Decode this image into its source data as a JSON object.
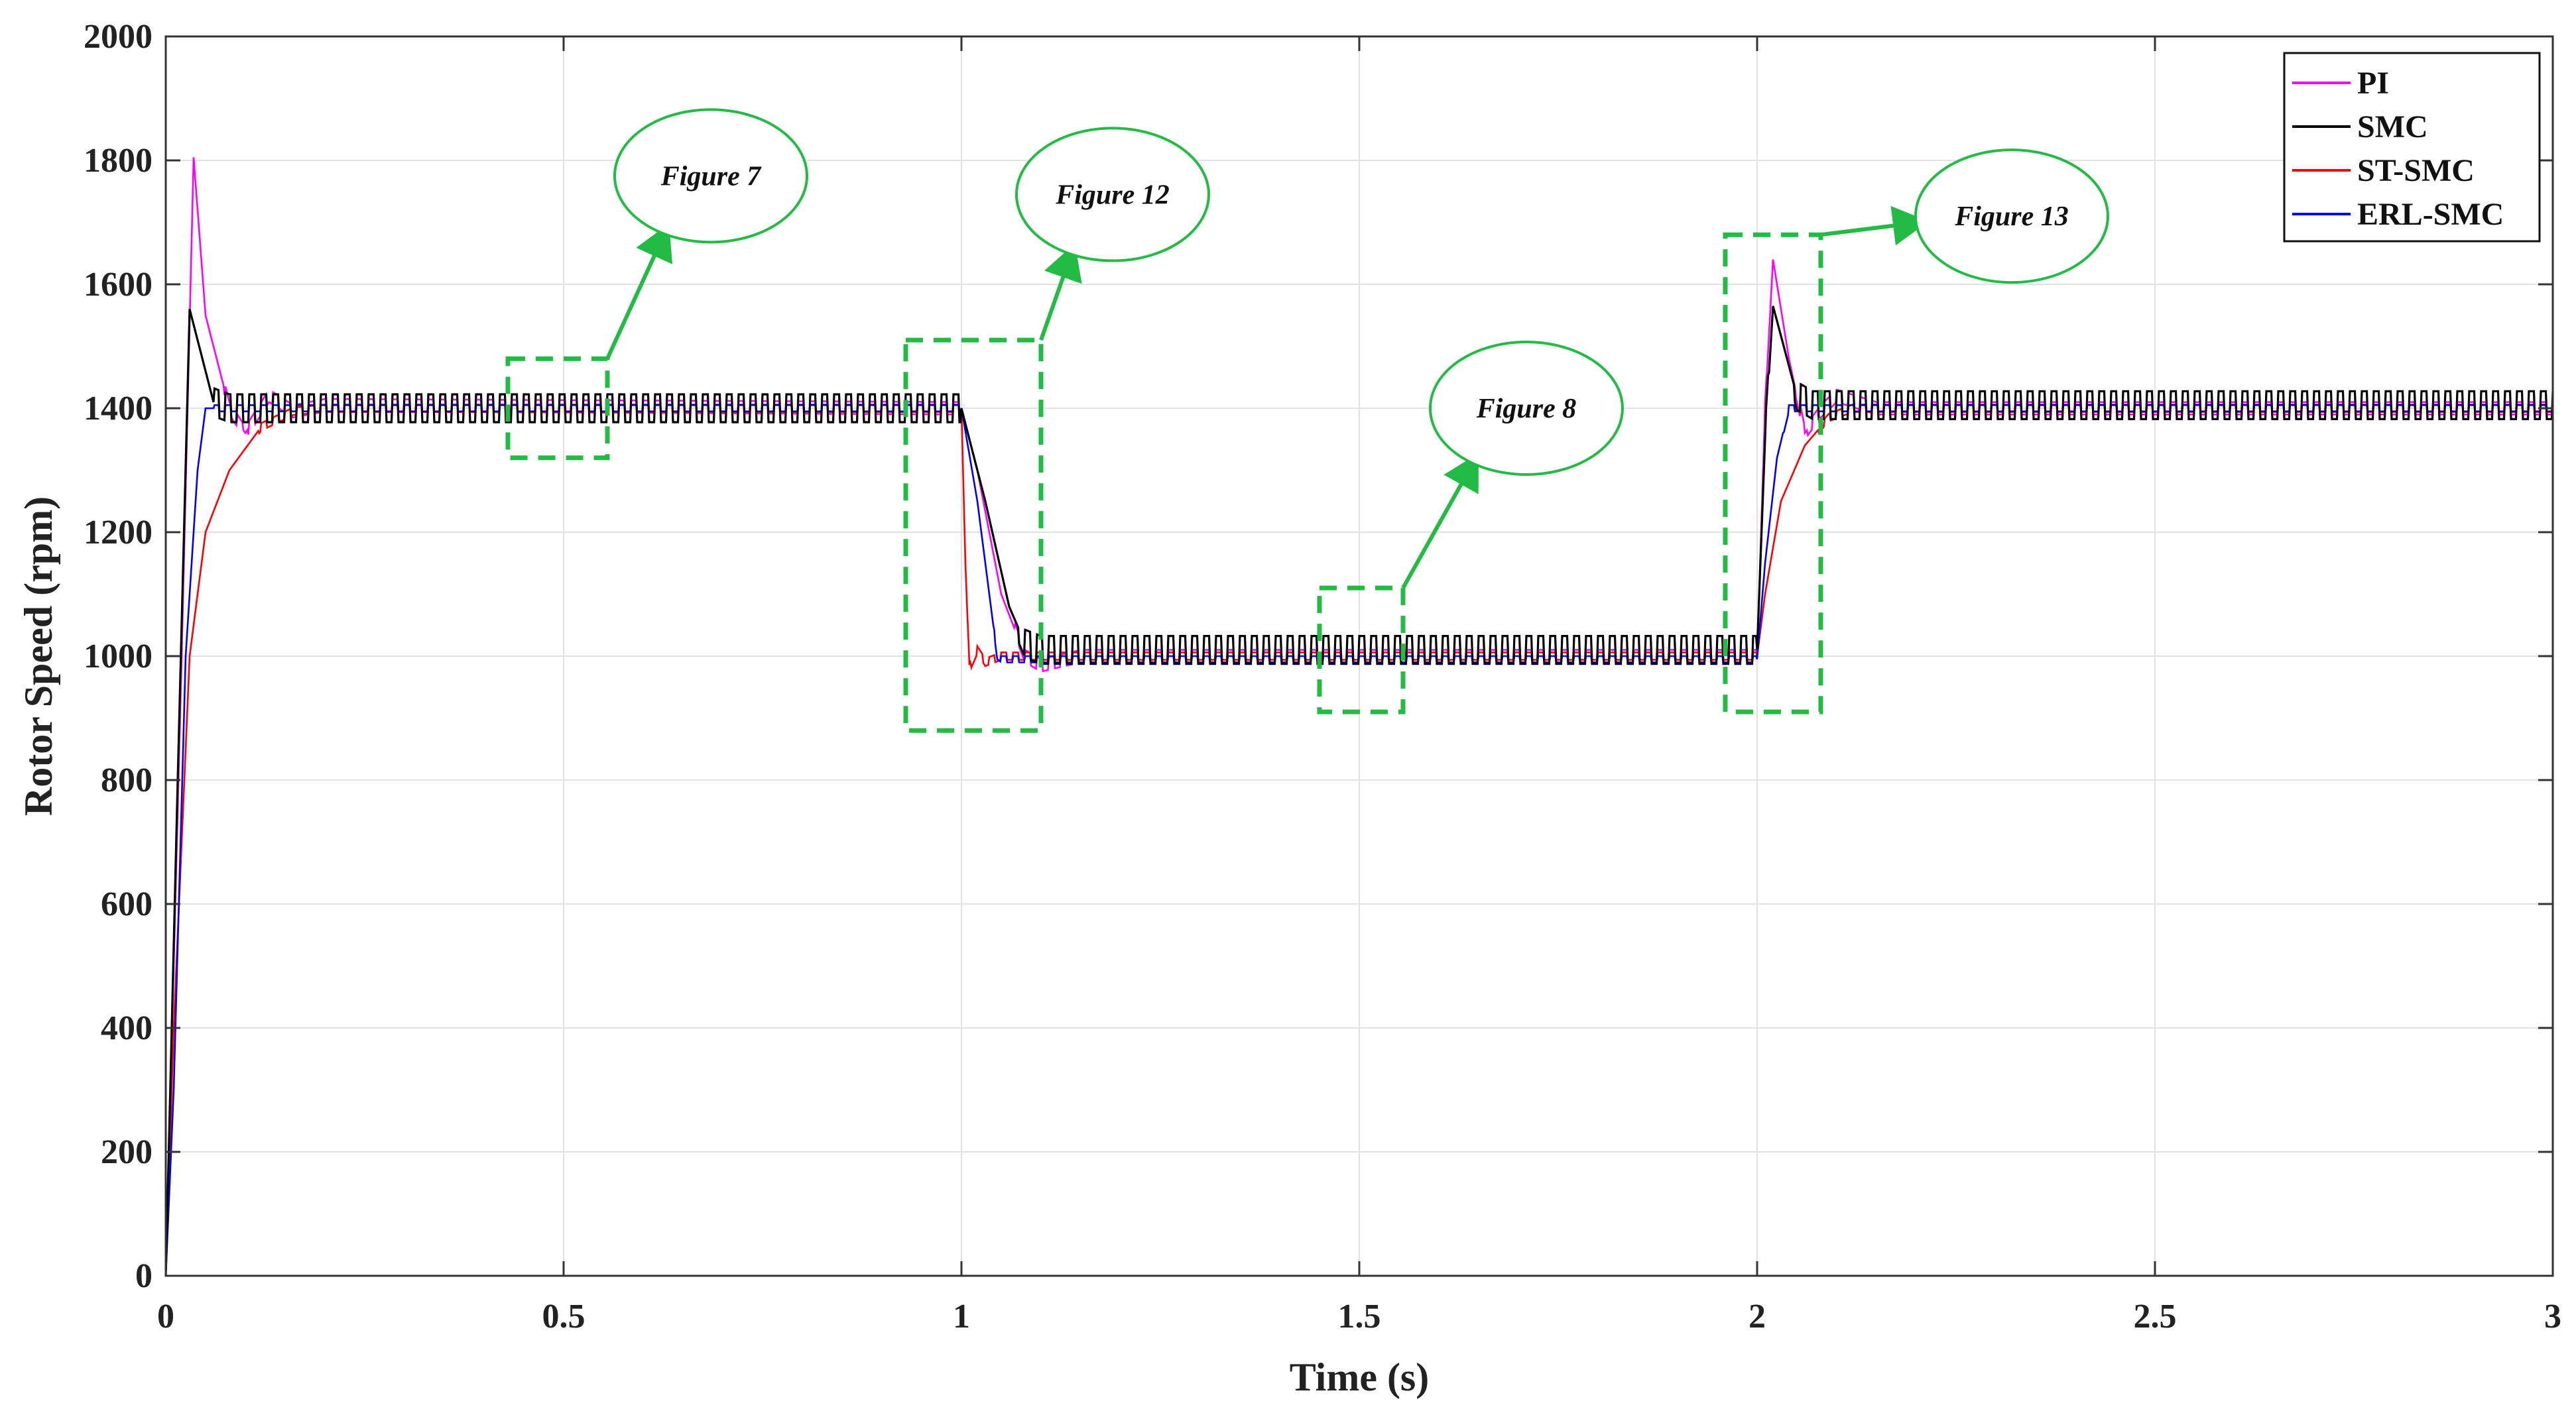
{
  "chart_data": {
    "type": "line",
    "title": "",
    "xlabel": "Time (s)",
    "ylabel": "Rotor Speed (rpm)",
    "xlim": [
      0,
      3
    ],
    "ylim": [
      0,
      2000
    ],
    "xticks": [
      0,
      0.5,
      1,
      1.5,
      2,
      2.5,
      3
    ],
    "xtick_labels": [
      "0",
      "0.5",
      "1",
      "1.5",
      "2",
      "2.5",
      "3"
    ],
    "yticks": [
      0,
      200,
      400,
      600,
      800,
      1000,
      1200,
      1400,
      1600,
      1800,
      2000
    ],
    "ytick_labels": [
      "0",
      "200",
      "400",
      "600",
      "800",
      "1000",
      "1200",
      "1400",
      "1600",
      "1800",
      "2000"
    ],
    "grid": true,
    "legend_position": "top-right",
    "reference_steps": [
      {
        "t": 0,
        "speed": 1400
      },
      {
        "t": 1,
        "speed": 1000
      },
      {
        "t": 2,
        "speed": 1400
      }
    ],
    "series": [
      {
        "name": "PI",
        "color": "#ff00ff",
        "ripple": 20,
        "points": [
          [
            0,
            0
          ],
          [
            0.02,
            1000
          ],
          [
            0.035,
            1805
          ],
          [
            0.05,
            1550
          ],
          [
            0.08,
            1400
          ],
          [
            0.1,
            1360
          ],
          [
            0.13,
            1420
          ],
          [
            0.16,
            1395
          ],
          [
            0.2,
            1405
          ],
          [
            1,
            1400
          ],
          [
            1.02,
            1300
          ],
          [
            1.05,
            1100
          ],
          [
            1.08,
            1000
          ],
          [
            1.1,
            985
          ],
          [
            1.15,
            1000
          ],
          [
            2,
            1000
          ],
          [
            2.01,
            1400
          ],
          [
            2.02,
            1640
          ],
          [
            2.04,
            1480
          ],
          [
            2.06,
            1360
          ],
          [
            2.08,
            1395
          ],
          [
            2.1,
            1420
          ],
          [
            2.15,
            1400
          ],
          [
            3,
            1400
          ]
        ]
      },
      {
        "name": "SMC",
        "color": "#000000",
        "ripple": 45,
        "points": [
          [
            0,
            0
          ],
          [
            0.015,
            800
          ],
          [
            0.03,
            1560
          ],
          [
            0.06,
            1410
          ],
          [
            0.08,
            1400
          ],
          [
            1,
            1400
          ],
          [
            1.03,
            1250
          ],
          [
            1.06,
            1080
          ],
          [
            1.08,
            1020
          ],
          [
            1.1,
            1010
          ],
          [
            2,
            1010
          ],
          [
            2.01,
            1350
          ],
          [
            2.02,
            1565
          ],
          [
            2.05,
            1420
          ],
          [
            2.07,
            1405
          ],
          [
            3,
            1405
          ]
        ]
      },
      {
        "name": "ST-SMC",
        "color": "#ff0000",
        "ripple": 12,
        "points": [
          [
            0,
            0
          ],
          [
            0.01,
            400
          ],
          [
            0.03,
            1000
          ],
          [
            0.05,
            1200
          ],
          [
            0.08,
            1300
          ],
          [
            0.12,
            1370
          ],
          [
            0.16,
            1395
          ],
          [
            0.2,
            1400
          ],
          [
            1,
            1400
          ],
          [
            1.005,
            1150
          ],
          [
            1.01,
            980
          ],
          [
            1.02,
            1010
          ],
          [
            1.03,
            990
          ],
          [
            1.05,
            1000
          ],
          [
            2,
            1000
          ],
          [
            2.01,
            1100
          ],
          [
            2.03,
            1250
          ],
          [
            2.06,
            1340
          ],
          [
            2.09,
            1385
          ],
          [
            2.12,
            1400
          ],
          [
            3,
            1400
          ]
        ]
      },
      {
        "name": "ERL-SMC",
        "color": "#0000ff",
        "ripple": 10,
        "points": [
          [
            0,
            0
          ],
          [
            0.01,
            300
          ],
          [
            0.025,
            1000
          ],
          [
            0.04,
            1300
          ],
          [
            0.05,
            1400
          ],
          [
            1,
            1400
          ],
          [
            1.02,
            1250
          ],
          [
            1.035,
            1100
          ],
          [
            1.045,
            1000
          ],
          [
            1.05,
            995
          ],
          [
            2,
            995
          ],
          [
            2.01,
            1150
          ],
          [
            2.025,
            1320
          ],
          [
            2.04,
            1400
          ],
          [
            3,
            1400
          ]
        ]
      }
    ],
    "annotations": [
      {
        "label": "Figure 7",
        "box": {
          "x0": 0.43,
          "x1": 0.555,
          "y0": 1320,
          "y1": 1480
        },
        "bubble": {
          "x": 0.685,
          "y": 1775
        }
      },
      {
        "label": "Figure 12",
        "box": {
          "x0": 0.93,
          "x1": 1.1,
          "y0": 880,
          "y1": 1510
        },
        "bubble": {
          "x": 1.19,
          "y": 1745
        }
      },
      {
        "label": "Figure 8",
        "box": {
          "x0": 1.45,
          "x1": 1.555,
          "y0": 910,
          "y1": 1110
        },
        "bubble": {
          "x": 1.71,
          "y": 1400
        }
      },
      {
        "label": "Figure 13",
        "box": {
          "x0": 1.96,
          "x1": 2.08,
          "y0": 910,
          "y1": 1680
        },
        "bubble": {
          "x": 2.32,
          "y": 1710
        }
      }
    ]
  }
}
